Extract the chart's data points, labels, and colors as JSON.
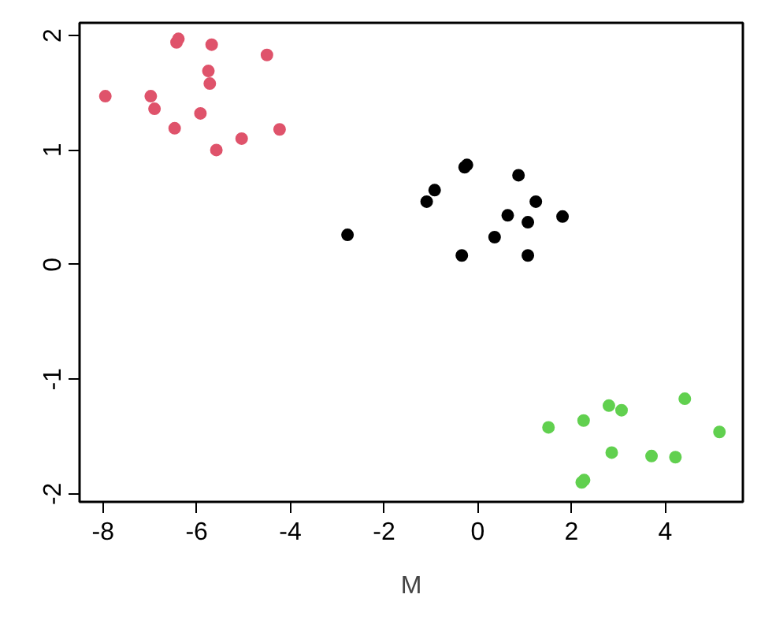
{
  "chart_data": {
    "type": "scatter",
    "xlabel": "M",
    "xlim": [
      -8.5,
      5.66
    ],
    "ylim": [
      -2.07,
      2.11
    ],
    "xticks": [
      -8,
      -6,
      -4,
      -2,
      0,
      2,
      4
    ],
    "yticks": [
      -2,
      -1,
      0,
      1,
      2
    ],
    "grid": false,
    "marker": "circle",
    "series": [
      {
        "color": "#df536b",
        "x": [
          -7.95,
          -6.98,
          -6.9,
          -6.43,
          -6.39,
          -6.47,
          -5.92,
          -5.75,
          -5.72,
          -5.68,
          -5.58,
          -5.04,
          -4.5,
          -4.23
        ],
        "values": [
          1.47,
          1.47,
          1.36,
          1.94,
          1.97,
          1.19,
          1.32,
          1.69,
          1.58,
          1.92,
          1.0,
          1.1,
          1.83,
          1.18
        ]
      },
      {
        "color": "#000000",
        "x": [
          -2.78,
          -1.09,
          -0.92,
          -0.28,
          -0.23,
          -0.34,
          0.36,
          0.64,
          0.87,
          1.07,
          1.07,
          1.24,
          1.81
        ],
        "values": [
          0.26,
          0.55,
          0.65,
          0.85,
          0.87,
          0.08,
          0.24,
          0.43,
          0.78,
          0.37,
          0.08,
          0.55,
          0.42
        ]
      },
      {
        "color": "#61d04f",
        "x": [
          1.51,
          2.26,
          2.22,
          2.27,
          2.8,
          2.86,
          3.07,
          3.71,
          4.22,
          4.42,
          5.16
        ],
        "values": [
          -1.42,
          -1.36,
          -1.9,
          -1.88,
          -1.23,
          -1.64,
          -1.27,
          -1.67,
          -1.68,
          -1.17,
          -1.46
        ]
      }
    ]
  }
}
